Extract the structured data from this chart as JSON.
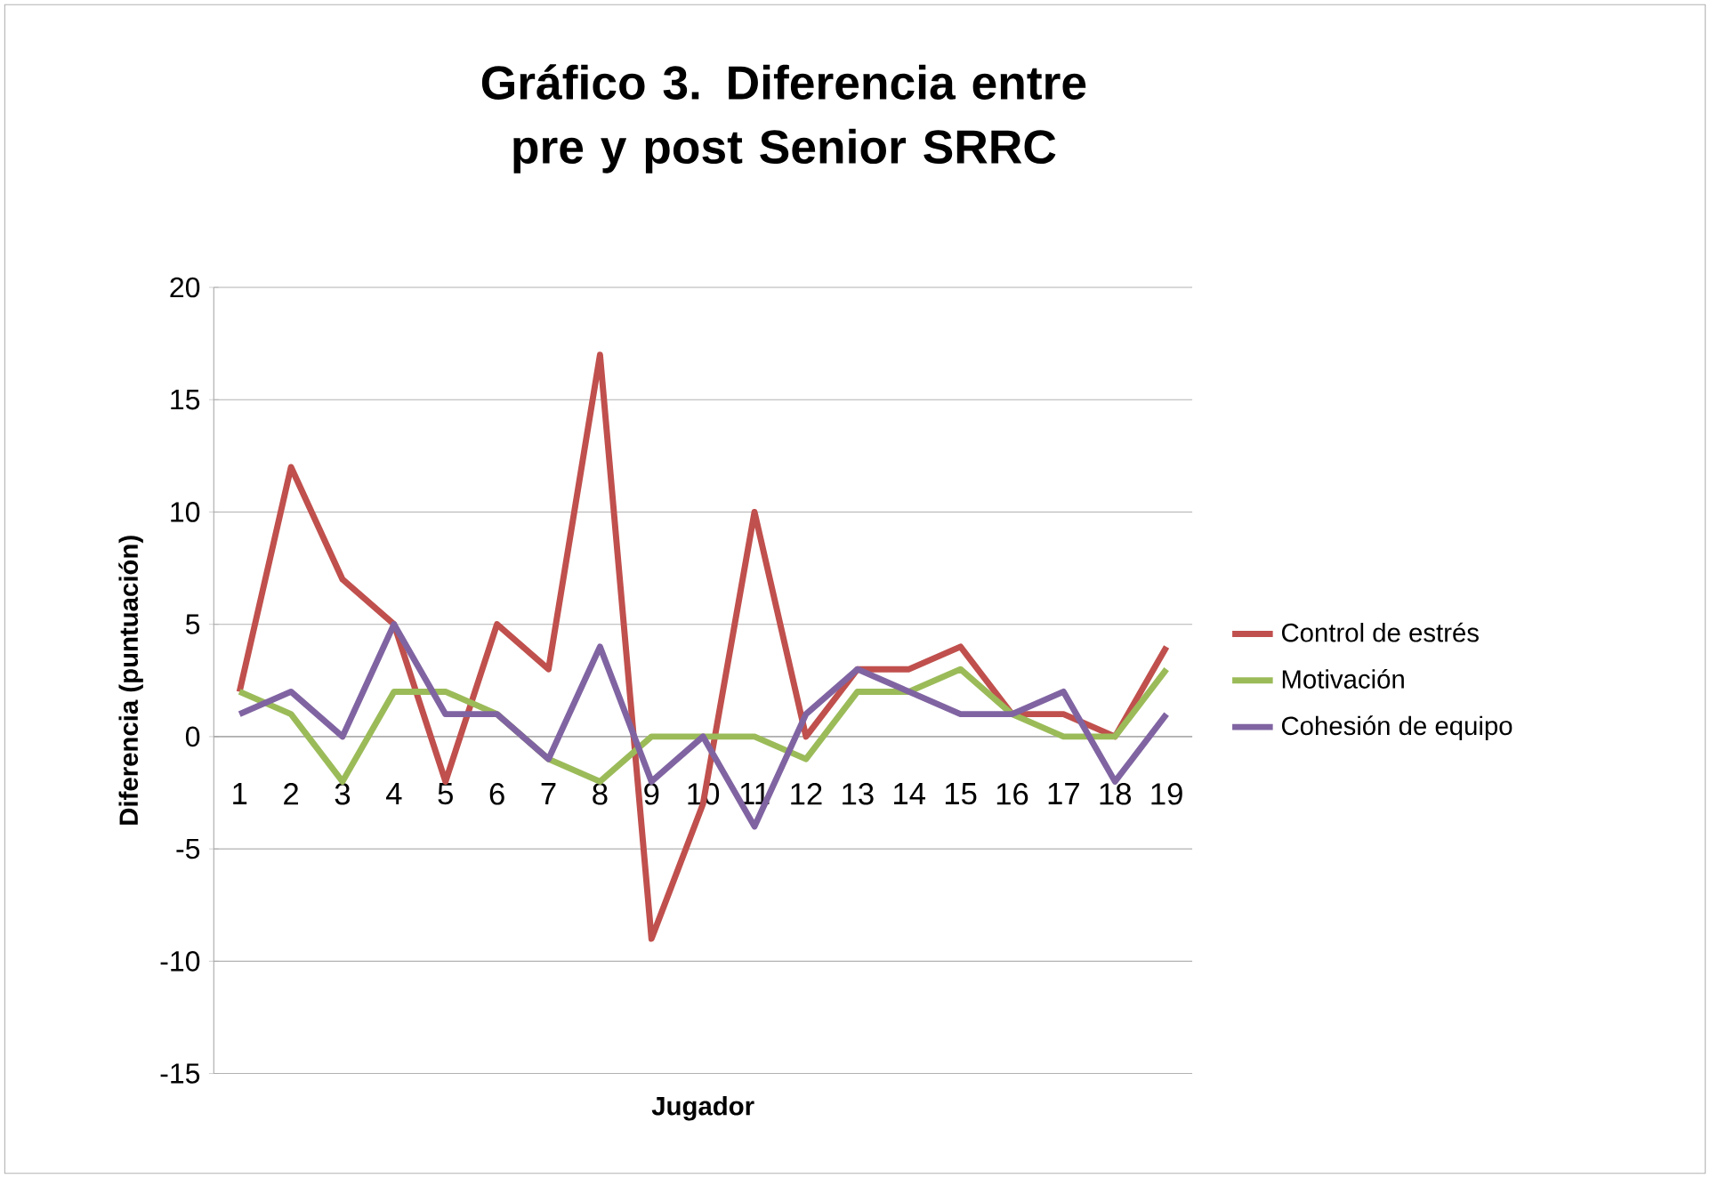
{
  "chart_data": {
    "type": "line",
    "title": "Gráfico 3. Diferencia entre pre y post Senior SRRC",
    "xlabel": "Jugador",
    "ylabel": "Diferencia  (puntuación)",
    "categories": [
      "1",
      "2",
      "3",
      "4",
      "5",
      "6",
      "7",
      "8",
      "9",
      "10",
      "11",
      "12",
      "13",
      "14",
      "15",
      "16",
      "17",
      "18",
      "19"
    ],
    "series": [
      {
        "name": "Control de estrés",
        "color": "#c0504d",
        "values": [
          2,
          12,
          7,
          5,
          -2,
          5,
          3,
          17,
          -9,
          -3,
          10,
          0,
          3,
          3,
          4,
          1,
          1,
          0,
          4
        ]
      },
      {
        "name": "Motivación",
        "color": "#9bbb59",
        "values": [
          2,
          1,
          -2,
          2,
          2,
          1,
          -1,
          -2,
          0,
          0,
          0,
          -1,
          2,
          2,
          3,
          1,
          0,
          0,
          3
        ]
      },
      {
        "name": "Cohesión de equipo",
        "color": "#8064a2",
        "values": [
          1,
          2,
          0,
          5,
          1,
          1,
          -1,
          4,
          -2,
          0,
          -4,
          1,
          3,
          2,
          1,
          1,
          2,
          -2,
          1
        ]
      }
    ],
    "ylim": [
      -15,
      20
    ],
    "yticks": [
      -15,
      -10,
      -5,
      0,
      5,
      10,
      15,
      20
    ],
    "grid": "y",
    "legend": "right",
    "marker": "none",
    "line_style": "solid"
  }
}
